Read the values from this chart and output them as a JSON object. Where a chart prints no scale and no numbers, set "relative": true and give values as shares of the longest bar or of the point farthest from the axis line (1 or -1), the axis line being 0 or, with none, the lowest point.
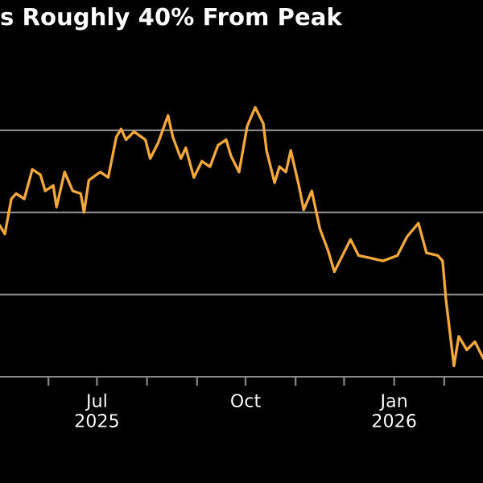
{
  "chart_data": {
    "type": "line",
    "title": "s Roughly 40% From Peak",
    "relative": true,
    "grid": "y",
    "marker": "none",
    "line_style": "solid",
    "x": [
      "2025-05-02",
      "2025-05-05",
      "2025-05-09",
      "2025-05-12",
      "2025-05-17",
      "2025-05-22",
      "2025-05-27",
      "2025-05-30",
      "2025-06-04",
      "2025-06-06",
      "2025-06-11",
      "2025-06-16",
      "2025-06-21",
      "2025-06-23",
      "2025-06-26",
      "2025-07-03",
      "2025-07-08",
      "2025-07-13",
      "2025-07-16",
      "2025-07-19",
      "2025-07-24",
      "2025-07-31",
      "2025-08-03",
      "2025-08-08",
      "2025-08-14",
      "2025-08-17",
      "2025-08-22",
      "2025-08-25",
      "2025-08-30",
      "2025-09-04",
      "2025-09-09",
      "2025-09-14",
      "2025-09-19",
      "2025-09-22",
      "2025-09-27",
      "2025-10-02",
      "2025-10-07",
      "2025-10-12",
      "2025-10-14",
      "2025-10-19",
      "2025-10-22",
      "2025-10-26",
      "2025-10-29",
      "2025-11-03",
      "2025-11-06",
      "2025-11-11",
      "2025-11-16",
      "2025-11-21",
      "2025-11-25",
      "2025-12-05",
      "2025-12-10",
      "2025-12-18",
      "2025-12-25",
      "2026-01-03",
      "2026-01-09",
      "2026-01-16",
      "2026-01-21",
      "2026-01-28",
      "2026-01-31",
      "2026-02-02",
      "2026-02-07",
      "2026-02-10",
      "2026-02-15",
      "2026-02-20",
      "2026-02-25"
    ],
    "series": [
      {
        "color": "#f5a83a",
        "values": [
          0.56,
          0.53,
          0.66,
          0.68,
          0.66,
          0.77,
          0.75,
          0.69,
          0.71,
          0.63,
          0.76,
          0.69,
          0.68,
          0.61,
          0.73,
          0.76,
          0.74,
          0.89,
          0.92,
          0.88,
          0.91,
          0.88,
          0.81,
          0.87,
          0.97,
          0.89,
          0.81,
          0.85,
          0.74,
          0.8,
          0.78,
          0.86,
          0.88,
          0.82,
          0.76,
          0.93,
          1.0,
          0.94,
          0.84,
          0.72,
          0.78,
          0.76,
          0.84,
          0.71,
          0.62,
          0.69,
          0.55,
          0.47,
          0.39,
          0.51,
          0.45,
          0.44,
          0.43,
          0.45,
          0.52,
          0.57,
          0.46,
          0.45,
          0.43,
          0.29,
          0.04,
          0.15,
          0.1,
          0.13,
          0.07
        ]
      }
    ],
    "xlim": [
      "2025-05-02",
      "2026-02-25"
    ],
    "xticks": [
      {
        "value": "2025-06-01",
        "label": null
      },
      {
        "value": "2025-07-01",
        "label": "Jul\n2025"
      },
      {
        "value": "2025-08-01",
        "label": null
      },
      {
        "value": "2025-09-01",
        "label": null
      },
      {
        "value": "2025-10-01",
        "label": "Oct"
      },
      {
        "value": "2025-11-01",
        "label": null
      },
      {
        "value": "2025-12-01",
        "label": null
      },
      {
        "value": "2026-01-01",
        "label": "Jan\n2026"
      },
      {
        "value": "2026-02-01",
        "label": null
      }
    ]
  }
}
